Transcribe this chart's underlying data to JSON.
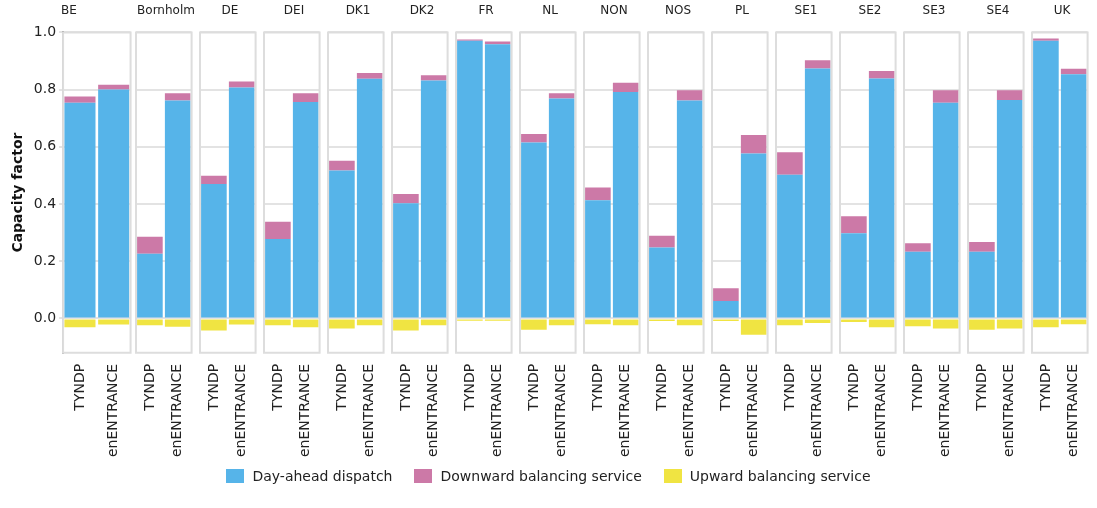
{
  "chart_data": [
    {
      "type": "bar",
      "stacked": true,
      "title": "BE",
      "ylabel": "Capacity factor",
      "legend": "bottom",
      "grid": "y",
      "ylim": [
        -0.12,
        1.0
      ],
      "yticks": [
        {
          "value": 0,
          "label": "0.0"
        },
        0.2,
        0.4,
        0.6,
        0.8,
        {
          "value": 1,
          "label": "1.0"
        }
      ],
      "categories": [
        "TYNDP",
        "enENTRANCE"
      ],
      "series": [
        {
          "name": "Day-ahead dispatch",
          "color": "#56b4e9",
          "values": [
            0.754,
            0.8
          ]
        },
        {
          "name": "Downward balancing service",
          "color": "#cc79a7",
          "values": [
            0.022,
            0.017
          ]
        },
        {
          "name": "Upward balancing service",
          "color": "#f0e442",
          "values": [
            -0.031,
            -0.021
          ]
        }
      ]
    },
    {
      "type": "bar",
      "stacked": true,
      "title": "Bornholm",
      "tick_labels": "x",
      "grid": "y",
      "ylim": [
        -0.12,
        1.0
      ],
      "yticks": [
        0,
        0.2,
        0.4,
        0.6,
        0.8,
        1
      ],
      "categories": [
        "TYNDP",
        "enENTRANCE"
      ],
      "series": [
        {
          "name": "Day-ahead dispatch",
          "color": "#56b4e9",
          "values": [
            0.226,
            0.762
          ]
        },
        {
          "name": "Downward balancing service",
          "color": "#cc79a7",
          "values": [
            0.06,
            0.025
          ]
        },
        {
          "name": "Upward balancing service",
          "color": "#f0e442",
          "values": [
            -0.024,
            -0.029
          ]
        }
      ]
    },
    {
      "type": "bar",
      "stacked": true,
      "title": "DE",
      "tick_labels": "x",
      "grid": "y",
      "ylim": [
        -0.12,
        1.0
      ],
      "yticks": [
        0,
        0.2,
        0.4,
        0.6,
        0.8,
        1
      ],
      "categories": [
        "TYNDP",
        "enENTRANCE"
      ],
      "series": [
        {
          "name": "Day-ahead dispatch",
          "color": "#56b4e9",
          "values": [
            0.47,
            0.807
          ]
        },
        {
          "name": "Downward balancing service",
          "color": "#cc79a7",
          "values": [
            0.029,
            0.021
          ]
        },
        {
          "name": "Upward balancing service",
          "color": "#f0e442",
          "values": [
            -0.042,
            -0.021
          ]
        }
      ]
    },
    {
      "type": "bar",
      "stacked": true,
      "title": "DEI",
      "tick_labels": "x",
      "grid": "y",
      "ylim": [
        -0.12,
        1.0
      ],
      "yticks": [
        0,
        0.2,
        0.4,
        0.6,
        0.8,
        1
      ],
      "categories": [
        "TYNDP",
        "enENTRANCE"
      ],
      "series": [
        {
          "name": "Day-ahead dispatch",
          "color": "#56b4e9",
          "values": [
            0.278,
            0.757
          ]
        },
        {
          "name": "Downward balancing service",
          "color": "#cc79a7",
          "values": [
            0.06,
            0.03
          ]
        },
        {
          "name": "Upward balancing service",
          "color": "#f0e442",
          "values": [
            -0.024,
            -0.031
          ]
        }
      ]
    },
    {
      "type": "bar",
      "stacked": true,
      "title": "DK1",
      "tick_labels": "x",
      "grid": "y",
      "ylim": [
        -0.12,
        1.0
      ],
      "yticks": [
        0,
        0.2,
        0.4,
        0.6,
        0.8,
        1
      ],
      "categories": [
        "TYNDP",
        "enENTRANCE"
      ],
      "series": [
        {
          "name": "Day-ahead dispatch",
          "color": "#56b4e9",
          "values": [
            0.517,
            0.838
          ]
        },
        {
          "name": "Downward balancing service",
          "color": "#cc79a7",
          "values": [
            0.034,
            0.02
          ]
        },
        {
          "name": "Upward balancing service",
          "color": "#f0e442",
          "values": [
            -0.035,
            -0.024
          ]
        }
      ]
    },
    {
      "type": "bar",
      "stacked": true,
      "title": "DK2",
      "tick_labels": "x",
      "grid": "y",
      "ylim": [
        -0.12,
        1.0
      ],
      "yticks": [
        0,
        0.2,
        0.4,
        0.6,
        0.8,
        1
      ],
      "categories": [
        "TYNDP",
        "enENTRANCE"
      ],
      "series": [
        {
          "name": "Day-ahead dispatch",
          "color": "#56b4e9",
          "values": [
            0.403,
            0.832
          ]
        },
        {
          "name": "Downward balancing service",
          "color": "#cc79a7",
          "values": [
            0.032,
            0.018
          ]
        },
        {
          "name": "Upward balancing service",
          "color": "#f0e442",
          "values": [
            -0.042,
            -0.024
          ]
        }
      ]
    },
    {
      "type": "bar",
      "stacked": true,
      "title": "FR",
      "tick_labels": "x",
      "grid": "y",
      "ylim": [
        -0.12,
        1.0
      ],
      "yticks": [
        0,
        0.2,
        0.4,
        0.6,
        0.8,
        1
      ],
      "categories": [
        "TYNDP",
        "enENTRANCE"
      ],
      "series": [
        {
          "name": "Day-ahead dispatch",
          "color": "#56b4e9",
          "values": [
            0.971,
            0.959
          ]
        },
        {
          "name": "Downward balancing service",
          "color": "#cc79a7",
          "values": [
            0.004,
            0.009
          ]
        },
        {
          "name": "Upward balancing service",
          "color": "#f0e442",
          "values": [
            -0.008,
            -0.008
          ]
        }
      ]
    },
    {
      "type": "bar",
      "stacked": true,
      "title": "NL",
      "tick_labels": "x",
      "grid": "y",
      "ylim": [
        -0.12,
        1.0
      ],
      "yticks": [
        0,
        0.2,
        0.4,
        0.6,
        0.8,
        1
      ],
      "categories": [
        "TYNDP",
        "enENTRANCE"
      ],
      "series": [
        {
          "name": "Day-ahead dispatch",
          "color": "#56b4e9",
          "values": [
            0.615,
            0.769
          ]
        },
        {
          "name": "Downward balancing service",
          "color": "#cc79a7",
          "values": [
            0.03,
            0.018
          ]
        },
        {
          "name": "Upward balancing service",
          "color": "#f0e442",
          "values": [
            -0.039,
            -0.024
          ]
        }
      ]
    },
    {
      "type": "bar",
      "stacked": true,
      "title": "NON",
      "tick_labels": "x",
      "grid": "y",
      "ylim": [
        -0.12,
        1.0
      ],
      "yticks": [
        0,
        0.2,
        0.4,
        0.6,
        0.8,
        1
      ],
      "categories": [
        "TYNDP",
        "enENTRANCE"
      ],
      "series": [
        {
          "name": "Day-ahead dispatch",
          "color": "#56b4e9",
          "values": [
            0.413,
            0.792
          ]
        },
        {
          "name": "Downward balancing service",
          "color": "#cc79a7",
          "values": [
            0.045,
            0.032
          ]
        },
        {
          "name": "Upward balancing service",
          "color": "#f0e442",
          "values": [
            -0.02,
            -0.024
          ]
        }
      ]
    },
    {
      "type": "bar",
      "stacked": true,
      "title": "NOS",
      "tick_labels": "x",
      "grid": "y",
      "ylim": [
        -0.12,
        1.0
      ],
      "yticks": [
        0,
        0.2,
        0.4,
        0.6,
        0.8,
        1
      ],
      "categories": [
        "TYNDP",
        "enENTRANCE"
      ],
      "series": [
        {
          "name": "Day-ahead dispatch",
          "color": "#56b4e9",
          "values": [
            0.248,
            0.762
          ]
        },
        {
          "name": "Downward balancing service",
          "color": "#cc79a7",
          "values": [
            0.041,
            0.036
          ]
        },
        {
          "name": "Upward balancing service",
          "color": "#f0e442",
          "values": [
            -0.009,
            -0.024
          ]
        }
      ]
    },
    {
      "type": "bar",
      "stacked": true,
      "title": "PL",
      "tick_labels": "x",
      "grid": "y",
      "ylim": [
        -0.12,
        1.0
      ],
      "yticks": [
        0,
        0.2,
        0.4,
        0.6,
        0.8,
        1
      ],
      "categories": [
        "TYNDP",
        "enENTRANCE"
      ],
      "series": [
        {
          "name": "Day-ahead dispatch",
          "color": "#56b4e9",
          "values": [
            0.061,
            0.577
          ]
        },
        {
          "name": "Downward balancing service",
          "color": "#cc79a7",
          "values": [
            0.045,
            0.064
          ]
        },
        {
          "name": "Upward balancing service",
          "color": "#f0e442",
          "values": [
            -0.009,
            -0.057
          ]
        }
      ]
    },
    {
      "type": "bar",
      "stacked": true,
      "title": "SE1",
      "tick_labels": "x",
      "grid": "y",
      "ylim": [
        -0.12,
        1.0
      ],
      "yticks": [
        0,
        0.2,
        0.4,
        0.6,
        0.8,
        1
      ],
      "categories": [
        "TYNDP",
        "enENTRANCE"
      ],
      "series": [
        {
          "name": "Day-ahead dispatch",
          "color": "#56b4e9",
          "values": [
            0.502,
            0.874
          ]
        },
        {
          "name": "Downward balancing service",
          "color": "#cc79a7",
          "values": [
            0.079,
            0.029
          ]
        },
        {
          "name": "Upward balancing service",
          "color": "#f0e442",
          "values": [
            -0.024,
            -0.016
          ]
        }
      ]
    },
    {
      "type": "bar",
      "stacked": true,
      "title": "SE2",
      "tick_labels": "x",
      "grid": "y",
      "ylim": [
        -0.12,
        1.0
      ],
      "yticks": [
        0,
        0.2,
        0.4,
        0.6,
        0.8,
        1
      ],
      "categories": [
        "TYNDP",
        "enENTRANCE"
      ],
      "series": [
        {
          "name": "Day-ahead dispatch",
          "color": "#56b4e9",
          "values": [
            0.298,
            0.839
          ]
        },
        {
          "name": "Downward balancing service",
          "color": "#cc79a7",
          "values": [
            0.059,
            0.026
          ]
        },
        {
          "name": "Upward balancing service",
          "color": "#f0e442",
          "values": [
            -0.012,
            -0.031
          ]
        }
      ]
    },
    {
      "type": "bar",
      "stacked": true,
      "title": "SE3",
      "tick_labels": "x",
      "grid": "y",
      "ylim": [
        -0.12,
        1.0
      ],
      "yticks": [
        0,
        0.2,
        0.4,
        0.6,
        0.8,
        1
      ],
      "categories": [
        "TYNDP",
        "enENTRANCE"
      ],
      "series": [
        {
          "name": "Day-ahead dispatch",
          "color": "#56b4e9",
          "values": [
            0.233,
            0.754
          ]
        },
        {
          "name": "Downward balancing service",
          "color": "#cc79a7",
          "values": [
            0.03,
            0.044
          ]
        },
        {
          "name": "Upward balancing service",
          "color": "#f0e442",
          "values": [
            -0.027,
            -0.035
          ]
        }
      ]
    },
    {
      "type": "bar",
      "stacked": true,
      "title": "SE4",
      "tick_labels": "x",
      "grid": "y",
      "ylim": [
        -0.12,
        1.0
      ],
      "yticks": [
        0,
        0.2,
        0.4,
        0.6,
        0.8,
        1
      ],
      "categories": [
        "TYNDP",
        "enENTRANCE"
      ],
      "series": [
        {
          "name": "Day-ahead dispatch",
          "color": "#56b4e9",
          "values": [
            0.233,
            0.764
          ]
        },
        {
          "name": "Downward balancing service",
          "color": "#cc79a7",
          "values": [
            0.034,
            0.034
          ]
        },
        {
          "name": "Upward balancing service",
          "color": "#f0e442",
          "values": [
            -0.039,
            -0.035
          ]
        }
      ]
    },
    {
      "type": "bar",
      "stacked": true,
      "title": "UK",
      "tick_labels": "x",
      "grid": "y",
      "ylim": [
        -0.12,
        1.0
      ],
      "yticks": [
        0,
        0.2,
        0.4,
        0.6,
        0.8,
        1
      ],
      "categories": [
        "TYNDP",
        "enENTRANCE"
      ],
      "series": [
        {
          "name": "Day-ahead dispatch",
          "color": "#56b4e9",
          "values": [
            0.971,
            0.854
          ]
        },
        {
          "name": "Downward balancing service",
          "color": "#cc79a7",
          "values": [
            0.008,
            0.019
          ]
        },
        {
          "name": "Upward balancing service",
          "color": "#f0e442",
          "values": [
            -0.031,
            -0.02
          ]
        }
      ]
    }
  ]
}
